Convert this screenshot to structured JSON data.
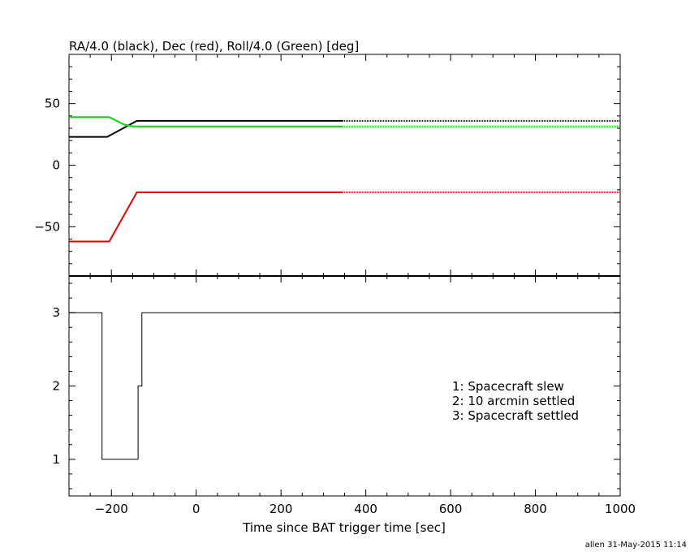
{
  "chart_data": [
    {
      "type": "line",
      "title": "RA/4.0 (black), Dec (red), Roll/4.0 (Green) [deg]",
      "xlim": [
        -300,
        1000
      ],
      "ylim": [
        -90,
        90
      ],
      "yticks": [
        50,
        0,
        -50
      ],
      "ytick_labels": [
        "50",
        "0",
        "−50"
      ],
      "series": [
        {
          "color": "#000000",
          "x": [
            -300,
            -210,
            -140,
            345
          ],
          "y": [
            23,
            23,
            36,
            36
          ],
          "dotted_to": 1000
        },
        {
          "color": "#00dd00",
          "x": [
            -300,
            -205,
            -170,
            -150,
            345
          ],
          "y": [
            39,
            39,
            33,
            31.5,
            31.5
          ],
          "dotted_to": 1000
        },
        {
          "color": "#dd0000",
          "x": [
            -300,
            -205,
            -140,
            345
          ],
          "y": [
            -62,
            -62,
            -22,
            -22
          ],
          "dotted_to": 1000
        }
      ]
    },
    {
      "type": "line",
      "xlabel": "Time since BAT trigger time [sec]",
      "xlim": [
        -300,
        1000
      ],
      "ylim": [
        0.5,
        3.5
      ],
      "xticks": [
        -200,
        0,
        200,
        400,
        600,
        800,
        1000
      ],
      "xtick_labels": [
        "−200",
        "0",
        "200",
        "400",
        "600",
        "800",
        "1000"
      ],
      "yticks": [
        1,
        2,
        3
      ],
      "ytick_labels": [
        "1",
        "2",
        "3"
      ],
      "series": [
        {
          "color": "#000000",
          "x": [
            -300,
            -222,
            -222,
            -137,
            -137,
            -128,
            -128,
            1000
          ],
          "y": [
            3,
            3,
            1,
            1,
            2,
            2,
            3,
            3
          ]
        }
      ],
      "annotations": [
        "1: Spacecraft slew",
        "2: 10 arcmin settled",
        "3: Spacecraft settled"
      ]
    }
  ],
  "footer": "allen 31-May-2015 11:14"
}
